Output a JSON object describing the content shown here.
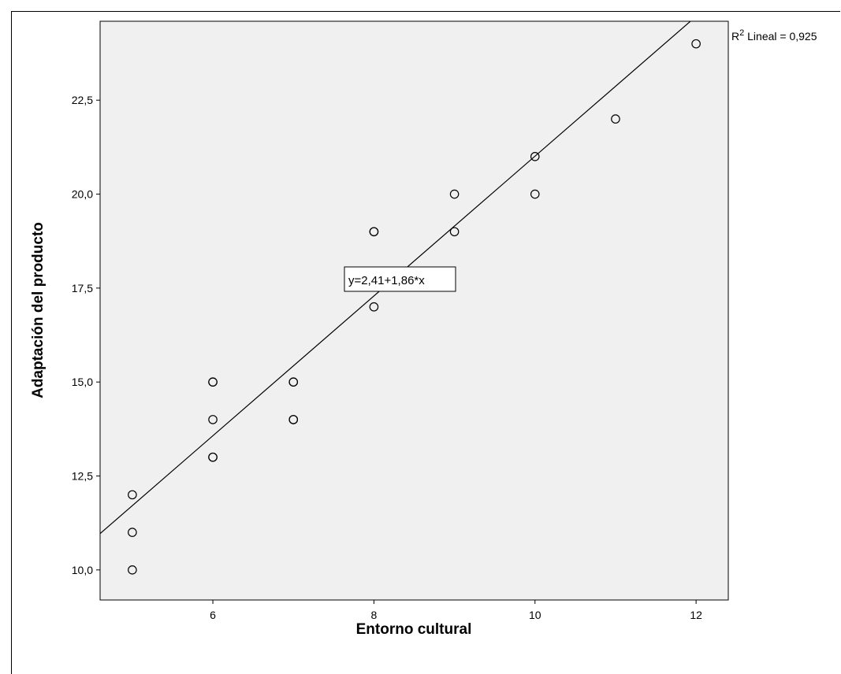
{
  "chart_data": {
    "type": "scatter",
    "xlabel": "Entorno cultural",
    "ylabel": "Adaptación del producto",
    "xlim": [
      4.6,
      12.4
    ],
    "ylim": [
      9.2,
      24.6
    ],
    "x_ticks": [
      6,
      8,
      10,
      12
    ],
    "y_ticks": [
      10.0,
      12.5,
      15.0,
      17.5,
      20.0,
      22.5
    ],
    "x_tick_labels": [
      "6",
      "8",
      "10",
      "12"
    ],
    "y_tick_labels": [
      "10,0",
      "12,5",
      "15,0",
      "17,5",
      "20,0",
      "22,5"
    ],
    "points": [
      {
        "x": 5,
        "y": 10
      },
      {
        "x": 5,
        "y": 11
      },
      {
        "x": 5,
        "y": 12
      },
      {
        "x": 6,
        "y": 13
      },
      {
        "x": 6,
        "y": 13
      },
      {
        "x": 6,
        "y": 14
      },
      {
        "x": 6,
        "y": 15
      },
      {
        "x": 6,
        "y": 15
      },
      {
        "x": 7,
        "y": 14
      },
      {
        "x": 7,
        "y": 14
      },
      {
        "x": 7,
        "y": 15
      },
      {
        "x": 7,
        "y": 15
      },
      {
        "x": 8,
        "y": 17
      },
      {
        "x": 8,
        "y": 19
      },
      {
        "x": 8,
        "y": 19
      },
      {
        "x": 9,
        "y": 19
      },
      {
        "x": 9,
        "y": 20
      },
      {
        "x": 10,
        "y": 20
      },
      {
        "x": 10,
        "y": 21
      },
      {
        "x": 11,
        "y": 22
      },
      {
        "x": 12,
        "y": 24
      }
    ],
    "fit_line": {
      "intercept": 2.41,
      "slope": 1.86
    },
    "equation_label": "y=2,41+1,86*x",
    "r2_label_prefix": "R",
    "r2_label_sup": "2",
    "r2_label_rest": " Lineal = 0,925",
    "grid": false,
    "plot_background": "#f0f0f0"
  }
}
